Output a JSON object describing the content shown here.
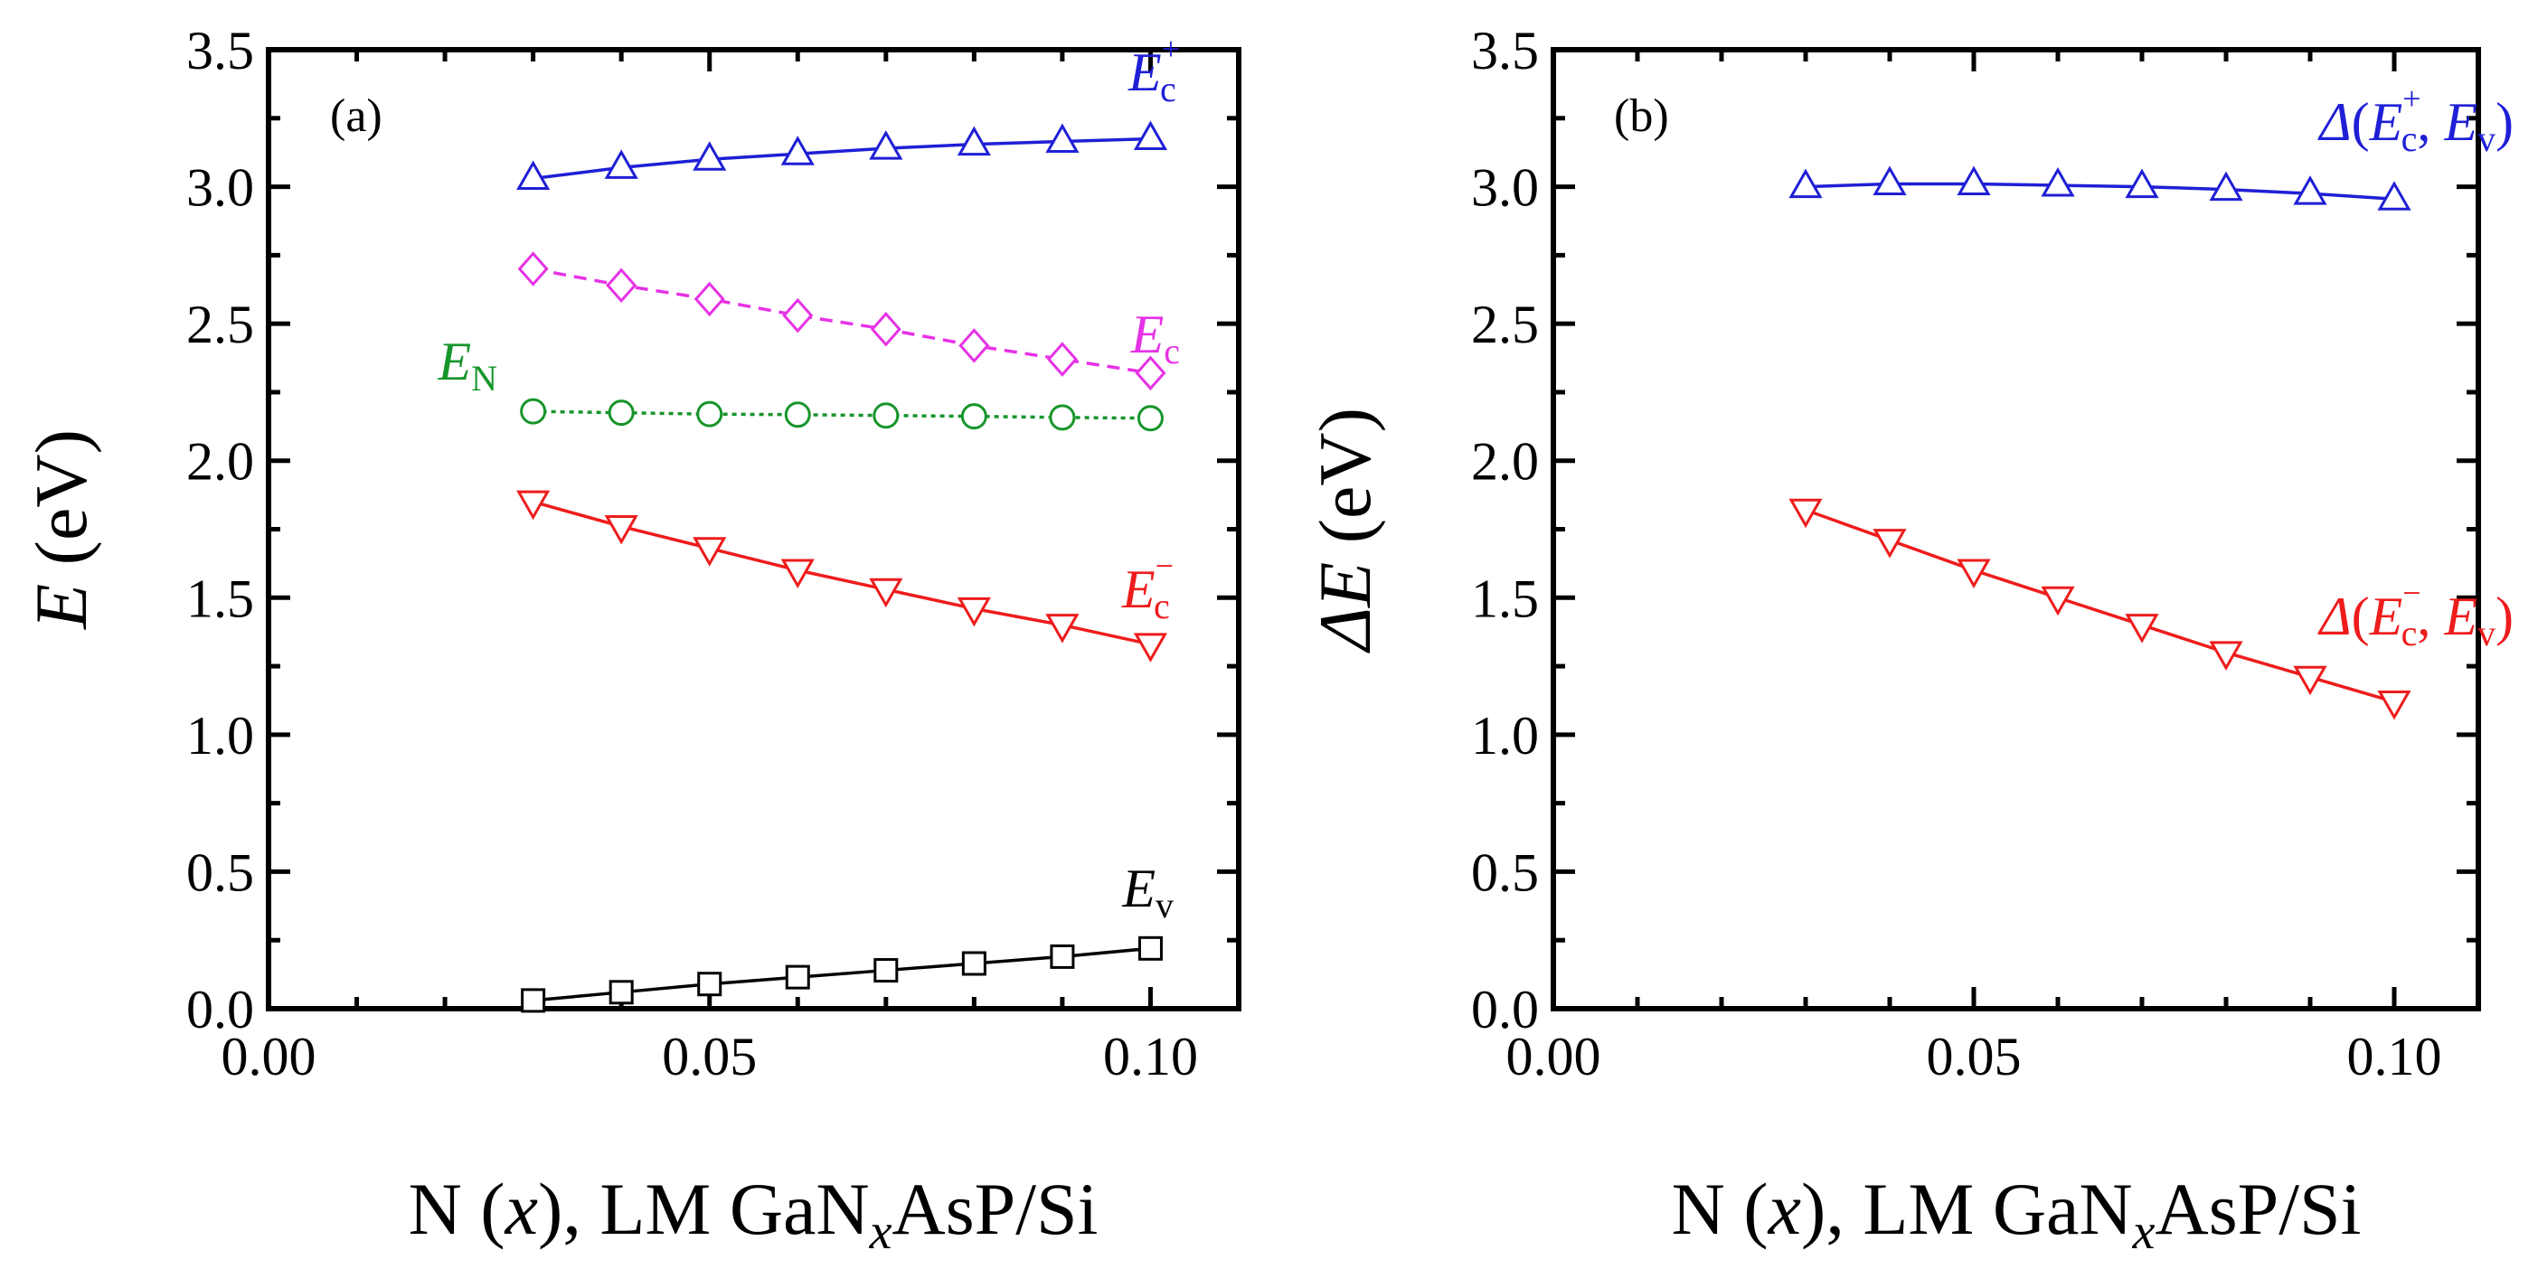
{
  "chart_data": [
    {
      "type": "line",
      "panel_label": "(a)",
      "xlabel": {
        "prefix": "N (",
        "var": "x",
        "mid": "), LM GaN",
        "sub": "x",
        "suffix": "AsP/Si"
      },
      "ylabel": {
        "var": "E",
        "unit": " (eV)"
      },
      "xlim": [
        0,
        0.11
      ],
      "ylim": [
        0,
        3.5
      ],
      "xticks": [
        "0.00",
        "0.05",
        "0.10"
      ],
      "xtick_values": [
        0,
        0.05,
        0.1
      ],
      "yticks": [
        "0.0",
        "0.5",
        "1.0",
        "1.5",
        "2.0",
        "2.5",
        "3.0",
        "3.5"
      ],
      "ytick_values": [
        0,
        0.5,
        1.0,
        1.5,
        2.0,
        2.5,
        3.0,
        3.5
      ],
      "x": [
        0.03,
        0.04,
        0.05,
        0.06,
        0.07,
        0.08,
        0.09,
        0.1
      ],
      "series": [
        {
          "name": "Ec+",
          "label": {
            "main": "E",
            "sub": "c",
            "sup": "+"
          },
          "color": "#1f1fd6",
          "marker": "triangle-up",
          "dash": "solid",
          "values": [
            3.03,
            3.07,
            3.1,
            3.12,
            3.14,
            3.155,
            3.165,
            3.175
          ]
        },
        {
          "name": "Ec",
          "label": {
            "main": "E",
            "sub": "c",
            "sup": ""
          },
          "color": "#e632e6",
          "marker": "diamond",
          "dash": "dashed",
          "values": [
            2.7,
            2.64,
            2.59,
            2.53,
            2.48,
            2.42,
            2.37,
            2.32
          ]
        },
        {
          "name": "EN",
          "label": {
            "main": "E",
            "sub": "N",
            "sup": ""
          },
          "color": "#17952b",
          "marker": "circle",
          "dash": "dotted",
          "values": [
            2.18,
            2.175,
            2.17,
            2.168,
            2.165,
            2.162,
            2.158,
            2.155
          ]
        },
        {
          "name": "Ec-",
          "label": {
            "main": "E",
            "sub": "c",
            "sup": "−"
          },
          "color": "#ee1c1c",
          "marker": "triangle-down",
          "dash": "solid",
          "values": [
            1.85,
            1.76,
            1.68,
            1.6,
            1.53,
            1.46,
            1.4,
            1.33
          ]
        },
        {
          "name": "Ev",
          "label": {
            "main": "E",
            "sub": "v",
            "sup": ""
          },
          "color": "#000000",
          "marker": "square",
          "dash": "solid",
          "values": [
            0.03,
            0.06,
            0.09,
            0.115,
            0.14,
            0.165,
            0.19,
            0.22
          ]
        }
      ]
    },
    {
      "type": "line",
      "panel_label": "(b)",
      "xlabel": {
        "prefix": "N (",
        "var": "x",
        "mid": "), LM GaN",
        "sub": "x",
        "suffix": "AsP/Si"
      },
      "ylabel": {
        "var": "ΔE",
        "unit": " (eV)"
      },
      "xlim": [
        0,
        0.11
      ],
      "ylim": [
        0,
        3.5
      ],
      "xticks": [
        "0.00",
        "0.05",
        "0.10"
      ],
      "xtick_values": [
        0,
        0.05,
        0.1
      ],
      "yticks": [
        "0.0",
        "0.5",
        "1.0",
        "1.5",
        "2.0",
        "2.5",
        "3.0",
        "3.5"
      ],
      "ytick_values": [
        0,
        0.5,
        1.0,
        1.5,
        2.0,
        2.5,
        3.0,
        3.5
      ],
      "x": [
        0.03,
        0.04,
        0.05,
        0.06,
        0.07,
        0.08,
        0.09,
        0.1
      ],
      "series": [
        {
          "name": "Δ(Ec+, Ev)",
          "label": {
            "main": "Δ",
            "open": "(",
            "e1": "E",
            "sub1": "c",
            "sup1": "+",
            "sep": ", ",
            "e2": "E",
            "sub2": "v",
            "close": ")"
          },
          "color": "#1f1fd6",
          "marker": "triangle-up",
          "dash": "solid",
          "values": [
            3.0,
            3.01,
            3.01,
            3.005,
            3.0,
            2.99,
            2.975,
            2.955
          ]
        },
        {
          "name": "Δ(Ec-, Ev)",
          "label": {
            "main": "Δ",
            "open": "(",
            "e1": "E",
            "sub1": "c",
            "sup1": "−",
            "sep": ", ",
            "e2": "E",
            "sub2": "v",
            "close": ")"
          },
          "color": "#ee1c1c",
          "marker": "triangle-down",
          "dash": "solid",
          "values": [
            1.82,
            1.71,
            1.6,
            1.5,
            1.4,
            1.3,
            1.21,
            1.12
          ]
        }
      ]
    }
  ]
}
